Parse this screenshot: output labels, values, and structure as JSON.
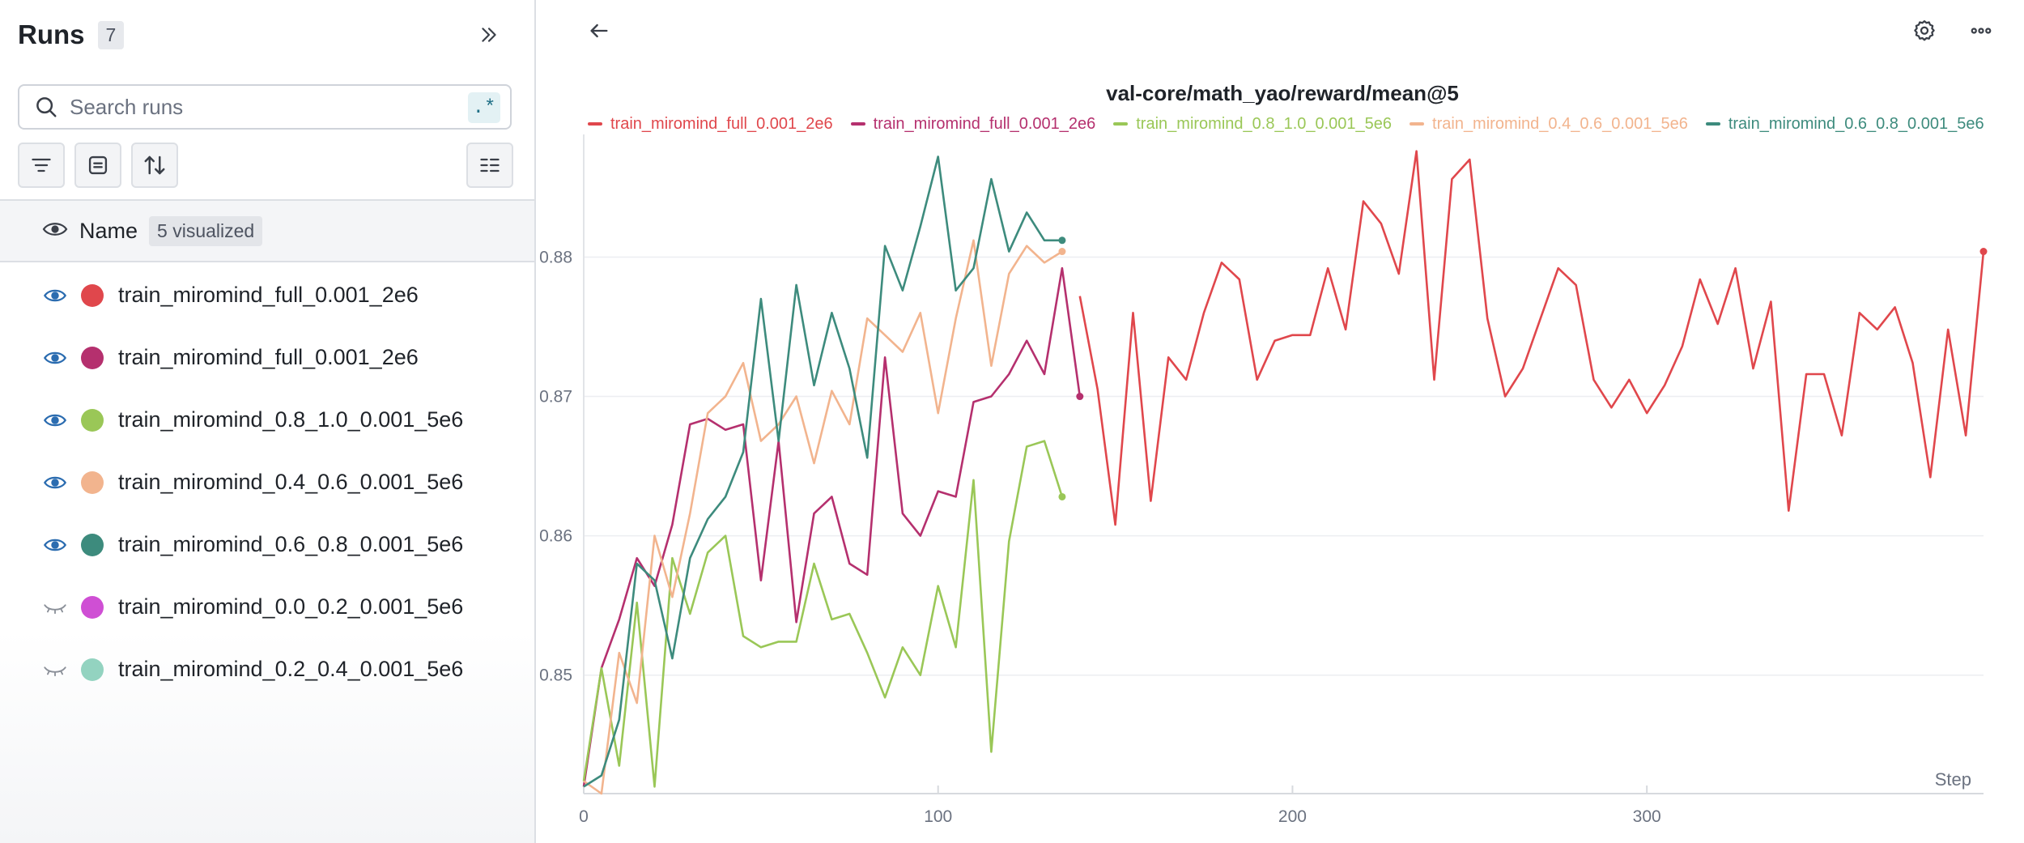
{
  "sidebar": {
    "title": "Runs",
    "count": "7",
    "search": {
      "placeholder": "Search runs",
      "regex_label": ".*"
    },
    "table_header": {
      "name_label": "Name",
      "visualized_badge": "5 visualized"
    },
    "runs": [
      {
        "name": "train_miromind_full_0.001_2e6",
        "color": "#e0474c",
        "visible": true
      },
      {
        "name": "train_miromind_full_0.001_2e6",
        "color": "#b5306e",
        "visible": true
      },
      {
        "name": "train_miromind_0.8_1.0_0.001_5e6",
        "color": "#9ac757",
        "visible": true
      },
      {
        "name": "train_miromind_0.4_0.6_0.001_5e6",
        "color": "#f2b48e",
        "visible": true
      },
      {
        "name": "train_miromind_0.6_0.8_0.001_5e6",
        "color": "#3d8b7d",
        "visible": true
      },
      {
        "name": "train_miromind_0.0_0.2_0.001_5e6",
        "color": "#cf4fd4",
        "visible": false
      },
      {
        "name": "train_miromind_0.2_0.4_0.001_5e6",
        "color": "#93d3c0",
        "visible": false
      }
    ]
  },
  "chart_data": {
    "type": "line",
    "title": "val-core/math_yao/reward/mean@5",
    "xlabel": "Step",
    "ylabel": "",
    "xlim": [
      0,
      395
    ],
    "ylim": [
      0.8415,
      0.8888
    ],
    "xticks": [
      0,
      100,
      200,
      300
    ],
    "yticks": [
      0.85,
      0.86,
      0.87,
      0.88
    ],
    "ytick_labels": [
      "0.85",
      "0.86",
      "0.87",
      "0.88"
    ],
    "legend_position": "top-left",
    "series": [
      {
        "name": "train_miromind_full_0.001_2e6",
        "color": "#e0474c",
        "x": [
          140,
          145,
          150,
          155,
          160,
          165,
          170,
          175,
          180,
          185,
          190,
          195,
          200,
          205,
          210,
          215,
          220,
          225,
          230,
          235,
          240,
          245,
          250,
          255,
          260,
          265,
          270,
          275,
          280,
          285,
          290,
          295,
          300,
          305,
          310,
          315,
          320,
          325,
          330,
          335,
          340,
          345,
          350,
          355,
          360,
          365,
          370,
          375,
          380,
          385,
          390,
          395
        ],
        "y": [
          0.8772,
          0.8705,
          0.8608,
          0.876,
          0.8625,
          0.8728,
          0.8712,
          0.876,
          0.8796,
          0.8784,
          0.8712,
          0.874,
          0.8744,
          0.8744,
          0.8792,
          0.8748,
          0.884,
          0.8824,
          0.8788,
          0.8876,
          0.8712,
          0.8856,
          0.887,
          0.8756,
          0.87,
          0.872,
          0.8756,
          0.8792,
          0.878,
          0.8712,
          0.8692,
          0.8712,
          0.8688,
          0.8708,
          0.8736,
          0.8784,
          0.8752,
          0.8792,
          0.872,
          0.8768,
          0.8618,
          0.8716,
          0.8716,
          0.8672,
          0.876,
          0.8748,
          0.8764,
          0.8724,
          0.8642,
          0.8748,
          0.8672,
          0.8804
        ]
      },
      {
        "name": "train_miromind_full_0.001_2e6",
        "color": "#b5306e",
        "x": [
          0,
          5,
          10,
          15,
          20,
          25,
          30,
          35,
          40,
          45,
          50,
          55,
          60,
          65,
          70,
          75,
          80,
          85,
          90,
          95,
          100,
          105,
          110,
          115,
          120,
          125,
          130,
          135,
          140
        ],
        "y": [
          0.842,
          0.8505,
          0.854,
          0.8584,
          0.8564,
          0.8608,
          0.868,
          0.8684,
          0.8676,
          0.868,
          0.8568,
          0.8668,
          0.8538,
          0.8616,
          0.8628,
          0.858,
          0.8572,
          0.8728,
          0.8616,
          0.86,
          0.8632,
          0.8628,
          0.8696,
          0.87,
          0.8716,
          0.874,
          0.8716,
          0.8792,
          0.87
        ]
      },
      {
        "name": "train_miromind_0.8_1.0_0.001_5e6",
        "color": "#9ac757",
        "x": [
          0,
          5,
          10,
          15,
          20,
          25,
          30,
          35,
          40,
          45,
          50,
          55,
          60,
          65,
          70,
          75,
          80,
          85,
          90,
          95,
          100,
          105,
          110,
          115,
          120,
          125,
          130,
          135
        ],
        "y": [
          0.8424,
          0.8505,
          0.8435,
          0.8552,
          0.842,
          0.8584,
          0.8544,
          0.8588,
          0.86,
          0.8528,
          0.852,
          0.8524,
          0.8524,
          0.858,
          0.854,
          0.8544,
          0.8516,
          0.8484,
          0.852,
          0.85,
          0.8564,
          0.852,
          0.864,
          0.8445,
          0.8596,
          0.8664,
          0.8668,
          0.8628
        ]
      },
      {
        "name": "train_miromind_0.4_0.6_0.001_5e6",
        "color": "#f2b48e",
        "x": [
          0,
          5,
          10,
          15,
          20,
          25,
          30,
          35,
          40,
          45,
          50,
          55,
          60,
          65,
          70,
          75,
          80,
          85,
          90,
          95,
          100,
          105,
          110,
          115,
          120,
          125,
          130,
          135
        ],
        "y": [
          0.8424,
          0.8415,
          0.8516,
          0.848,
          0.86,
          0.8556,
          0.8616,
          0.8688,
          0.87,
          0.8724,
          0.8668,
          0.868,
          0.87,
          0.8652,
          0.8704,
          0.868,
          0.8756,
          0.8744,
          0.8732,
          0.876,
          0.8688,
          0.8756,
          0.8812,
          0.8722,
          0.8788,
          0.8808,
          0.8796,
          0.8804
        ]
      },
      {
        "name": "train_miromind_0.6_0.8_0.001_5e6",
        "color": "#3d8b7d",
        "x": [
          0,
          5,
          10,
          15,
          20,
          25,
          30,
          35,
          40,
          45,
          50,
          55,
          60,
          65,
          70,
          75,
          80,
          85,
          90,
          95,
          100,
          105,
          110,
          115,
          120,
          125,
          130,
          135
        ],
        "y": [
          0.842,
          0.8428,
          0.8468,
          0.858,
          0.8568,
          0.8512,
          0.8584,
          0.8612,
          0.8628,
          0.866,
          0.877,
          0.8668,
          0.878,
          0.8708,
          0.876,
          0.872,
          0.8656,
          0.8808,
          0.8776,
          0.8822,
          0.8872,
          0.8776,
          0.8792,
          0.8856,
          0.8804,
          0.8832,
          0.8812,
          0.8812
        ]
      }
    ]
  }
}
